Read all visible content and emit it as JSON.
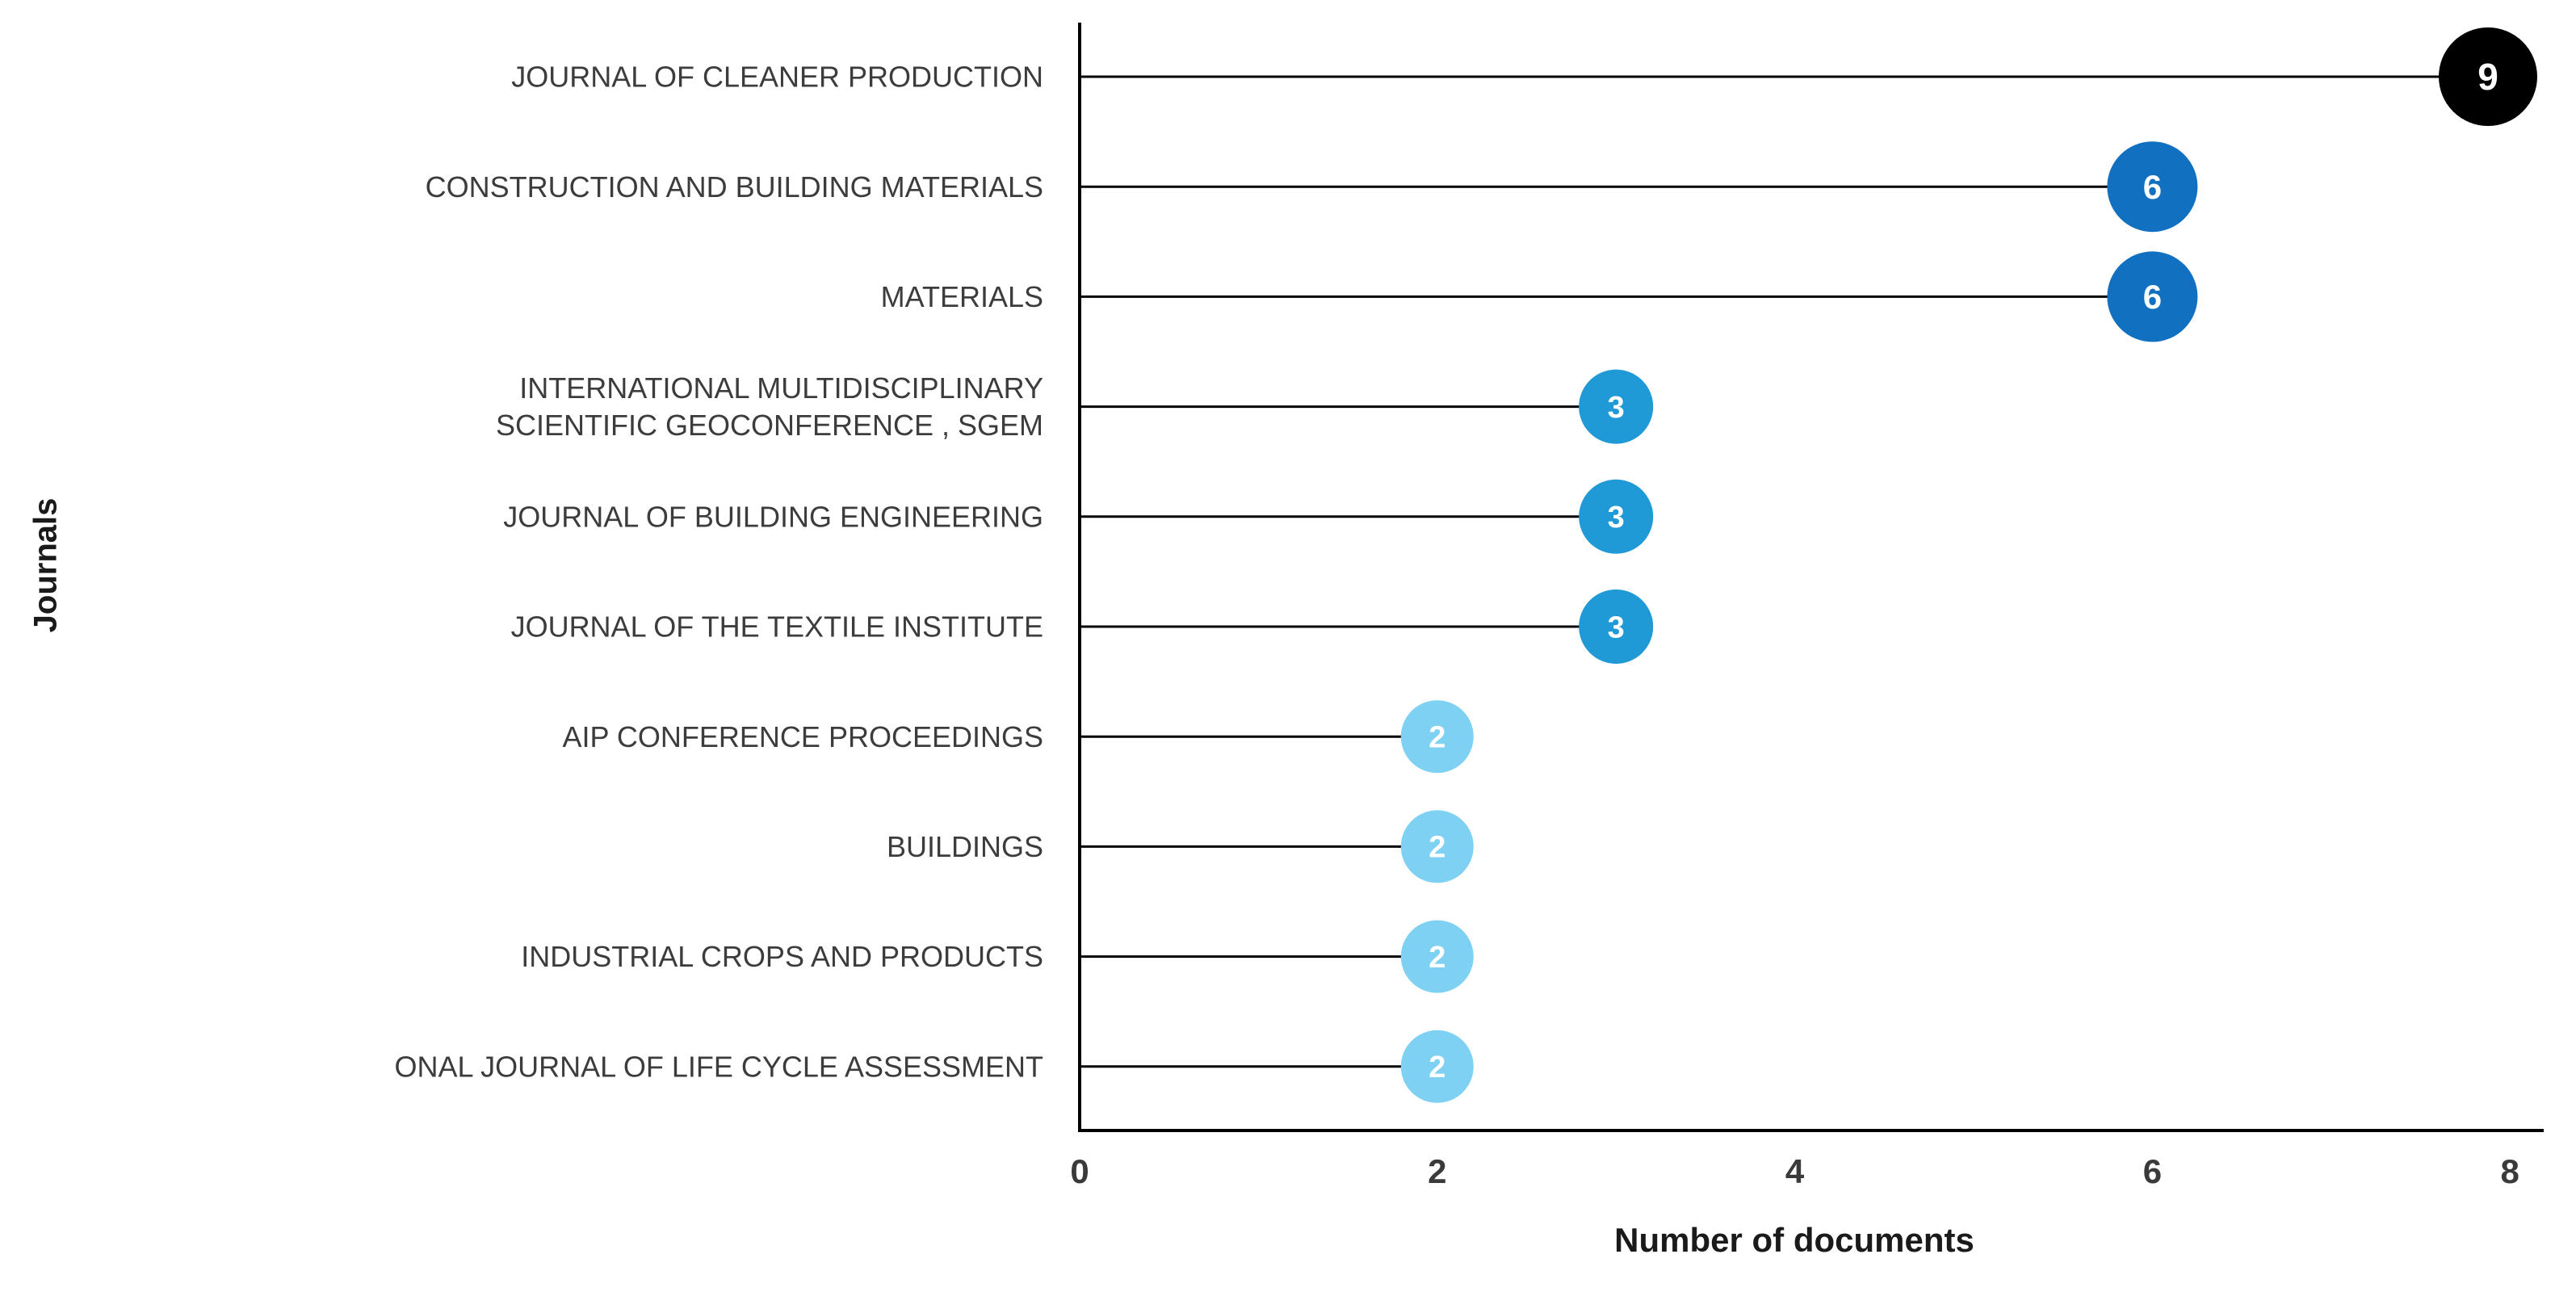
{
  "page": {
    "background": "#ffffff"
  },
  "chart_data": {
    "type": "lollipop",
    "title": "",
    "xlabel": "Number of documents",
    "ylabel": "Journals",
    "xlim": [
      0,
      8
    ],
    "xticks": [
      0,
      2,
      4,
      6,
      8
    ],
    "grid": false,
    "legend_position": "none",
    "categories": [
      "JOURNAL OF CLEANER PRODUCTION",
      "CONSTRUCTION AND BUILDING MATERIALS",
      "MATERIALS",
      "INTERNATIONAL MULTIDISCIPLINARY SCIENTIFIC GEOCONFERENCE , SGEM",
      "JOURNAL OF BUILDING ENGINEERING",
      "JOURNAL OF THE TEXTILE INSTITUTE",
      "AIP CONFERENCE PROCEEDINGS",
      "BUILDINGS",
      "INDUSTRIAL CROPS AND PRODUCTS",
      "ONAL JOURNAL OF LIFE CYCLE ASSESSMENT"
    ],
    "values": [
      9,
      6,
      6,
      3,
      3,
      3,
      2,
      2,
      2,
      2
    ],
    "items": [
      {
        "lines": [
          "JOURNAL OF CLEANER PRODUCTION"
        ],
        "value": 9,
        "color": "#000000",
        "radius": 61,
        "font": 46
      },
      {
        "lines": [
          "CONSTRUCTION AND BUILDING MATERIALS"
        ],
        "value": 6,
        "color": "#1170c0",
        "radius": 56,
        "font": 42
      },
      {
        "lines": [
          "MATERIALS"
        ],
        "value": 6,
        "color": "#1170c0",
        "radius": 56,
        "font": 42
      },
      {
        "lines": [
          "INTERNATIONAL MULTIDISCIPLINARY",
          "SCIENTIFIC GEOCONFERENCE , SGEM"
        ],
        "value": 3,
        "color": "#1f9ad7",
        "radius": 46,
        "font": 38
      },
      {
        "lines": [
          "JOURNAL OF BUILDING ENGINEERING"
        ],
        "value": 3,
        "color": "#1f9ad7",
        "radius": 46,
        "font": 38
      },
      {
        "lines": [
          "JOURNAL OF THE TEXTILE INSTITUTE"
        ],
        "value": 3,
        "color": "#1f9ad7",
        "radius": 46,
        "font": 38
      },
      {
        "lines": [
          "AIP CONFERENCE PROCEEDINGS"
        ],
        "value": 2,
        "color": "#7fd1f3",
        "radius": 45,
        "font": 38
      },
      {
        "lines": [
          "BUILDINGS"
        ],
        "value": 2,
        "color": "#7fd1f3",
        "radius": 45,
        "font": 38
      },
      {
        "lines": [
          "INDUSTRIAL CROPS AND PRODUCTS"
        ],
        "value": 2,
        "color": "#7fd1f3",
        "radius": 45,
        "font": 38
      },
      {
        "lines": [
          "ONAL JOURNAL OF LIFE CYCLE ASSESSMENT"
        ],
        "value": 2,
        "color": "#7fd1f3",
        "radius": 45,
        "font": 38
      }
    ],
    "styles": {
      "stem_color": "#000000",
      "axis_color": "#000000",
      "bubble_value_text_color": "#ffffff",
      "category_label_color": "#3c3c3c",
      "tick_label_color": "#3a3a3a"
    }
  }
}
